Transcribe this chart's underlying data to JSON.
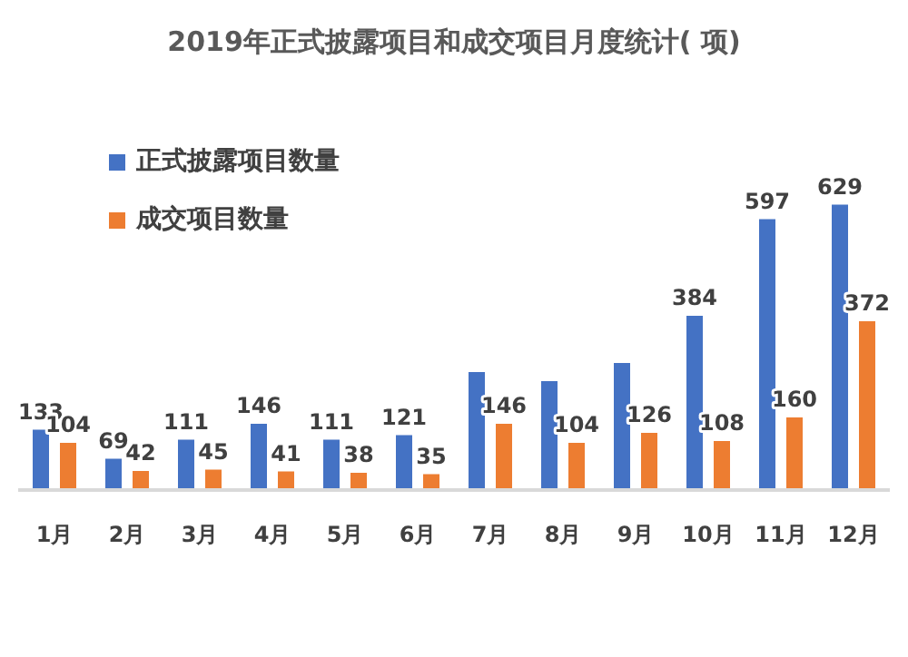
{
  "chart_data": {
    "type": "bar",
    "title": "2019年正式披露项目和成交项目月度统计( 项)",
    "categories": [
      "1月",
      "2月",
      "3月",
      "4月",
      "5月",
      "6月",
      "7月",
      "8月",
      "9月",
      "10月",
      "11月",
      "12月"
    ],
    "series": [
      {
        "name": "正式披露项目数量",
        "color": "#4472c4",
        "values": [
          133,
          69,
          111,
          146,
          111,
          121,
          260,
          240,
          280,
          384,
          597,
          629
        ],
        "value_labels": [
          "133",
          "69",
          "111",
          "146",
          "111",
          "121",
          null,
          null,
          null,
          "384",
          "597",
          "629"
        ]
      },
      {
        "name": "成交项目数量",
        "color": "#ed7d31",
        "values": [
          104,
          42,
          45,
          41,
          38,
          35,
          146,
          104,
          126,
          108,
          160,
          372
        ],
        "value_labels": [
          "104",
          "42",
          "45",
          "41",
          "38",
          "35",
          "146",
          "104",
          "126",
          "108",
          "160",
          "372"
        ]
      }
    ],
    "tick_labels": "x",
    "legend": "top left"
  }
}
